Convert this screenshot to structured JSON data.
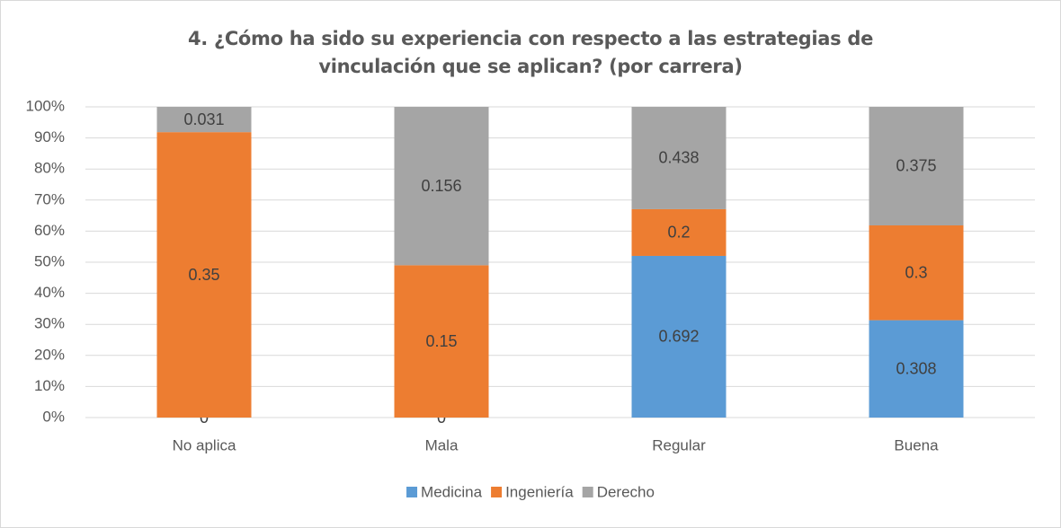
{
  "chart_data": {
    "type": "bar",
    "stack": "percent",
    "title": "4. ¿Cómo ha sido su experiencia con respecto a las estrategias de vinculación que se aplican? (por carrera)",
    "categories": [
      "No aplica",
      "Mala",
      "Regular",
      "Buena"
    ],
    "series": [
      {
        "name": "Medicina",
        "color": "#5b9bd5",
        "values": [
          0,
          0,
          0.692,
          0.308
        ]
      },
      {
        "name": "Ingeniería",
        "color": "#ed7d31",
        "values": [
          0.35,
          0.15,
          0.2,
          0.3
        ]
      },
      {
        "name": "Derecho",
        "color": "#a5a5a5",
        "values": [
          0.031,
          0.156,
          0.438,
          0.375
        ]
      }
    ],
    "ylim": [
      0,
      100
    ],
    "yticks": [
      {
        "value": 0,
        "label": "0%"
      },
      {
        "value": 10,
        "label": "10%"
      },
      {
        "value": 20,
        "label": "20%"
      },
      {
        "value": 30,
        "label": "30%"
      },
      {
        "value": 40,
        "label": "40%"
      },
      {
        "value": 50,
        "label": "50%"
      },
      {
        "value": 60,
        "label": "60%"
      },
      {
        "value": 70,
        "label": "70%"
      },
      {
        "value": 80,
        "label": "80%"
      },
      {
        "value": 90,
        "label": "90%"
      },
      {
        "value": 100,
        "label": "100%"
      }
    ],
    "grid": true,
    "legend": "bottom"
  }
}
